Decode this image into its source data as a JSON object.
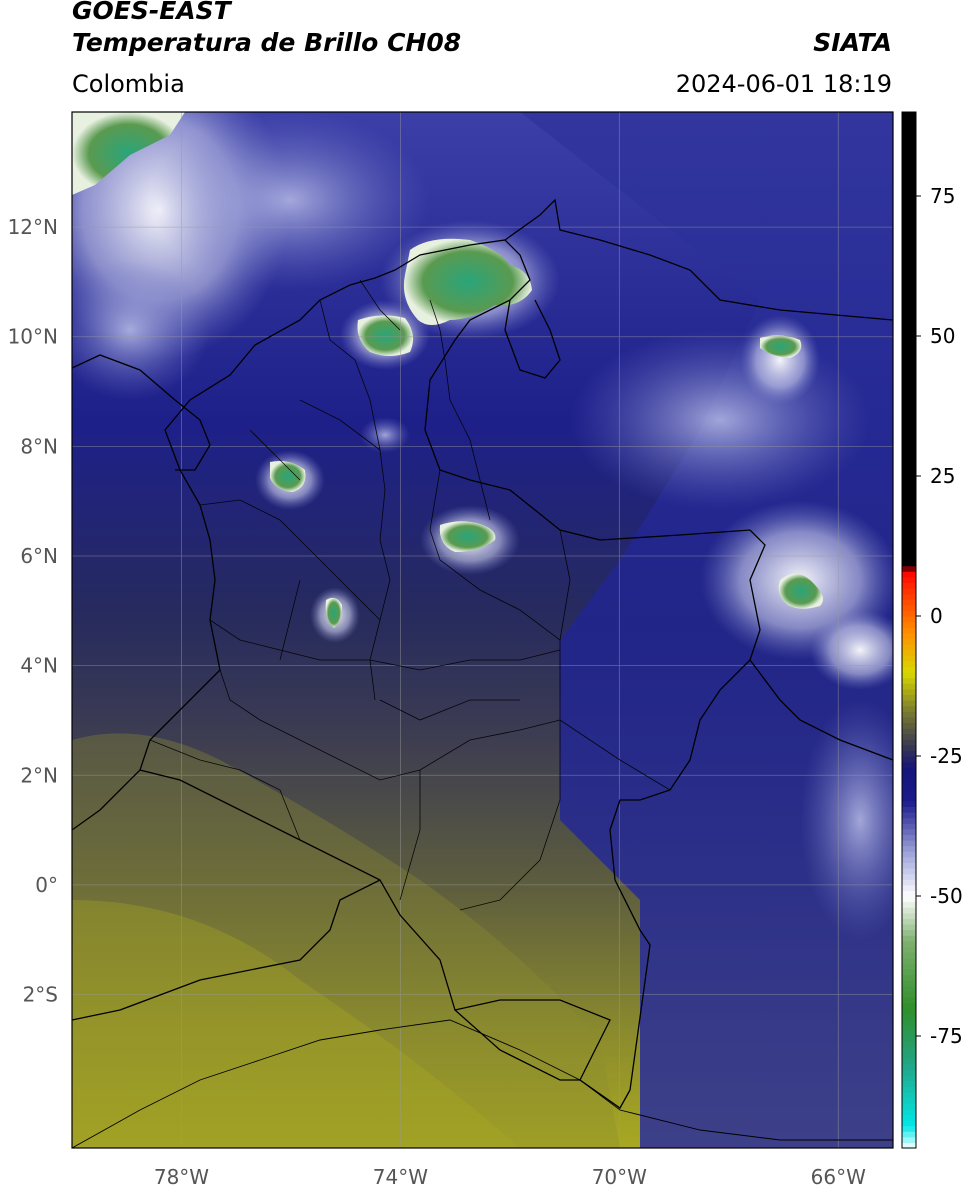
{
  "header": {
    "satellite": "GOES-EAST",
    "product": "Temperatura de Brillo CH08",
    "region": "Colombia",
    "agency": "SIATA",
    "datetime": "2024-06-01 18:19"
  },
  "map": {
    "lon_range": [
      -80,
      -65
    ],
    "lat_range": [
      -4.8,
      14.1
    ],
    "lat_ticks": [
      {
        "value": 12,
        "label": "12°N"
      },
      {
        "value": 10,
        "label": "10°N"
      },
      {
        "value": 8,
        "label": "8°N"
      },
      {
        "value": 6,
        "label": "6°N"
      },
      {
        "value": 4,
        "label": "4°N"
      },
      {
        "value": 2,
        "label": "2°N"
      },
      {
        "value": 0,
        "label": "0°"
      },
      {
        "value": -2,
        "label": "2°S"
      }
    ],
    "lon_ticks": [
      {
        "value": -78,
        "label": "78°W"
      },
      {
        "value": -74,
        "label": "74°W"
      },
      {
        "value": -70,
        "label": "70°W"
      },
      {
        "value": -66,
        "label": "66°W"
      }
    ],
    "grid": true
  },
  "colorbar": {
    "range": [
      -95,
      90
    ],
    "ticks": [
      {
        "value": 75,
        "label": "75"
      },
      {
        "value": 50,
        "label": "50"
      },
      {
        "value": 25,
        "label": "25"
      },
      {
        "value": 0,
        "label": "0"
      },
      {
        "value": -25,
        "label": "-25"
      },
      {
        "value": -50,
        "label": "-50"
      },
      {
        "value": -75,
        "label": "-75"
      }
    ],
    "stops": [
      {
        "value": -95,
        "color": "#ffffff"
      },
      {
        "value": -91,
        "color": "#00e8e8"
      },
      {
        "value": -80,
        "color": "#22a585"
      },
      {
        "value": -70,
        "color": "#2f8f2a"
      },
      {
        "value": -58,
        "color": "#7fb070"
      },
      {
        "value": -50,
        "color": "#ffffff"
      },
      {
        "value": -42,
        "color": "#9aa0d8"
      },
      {
        "value": -33,
        "color": "#1a1a8c"
      },
      {
        "value": -27,
        "color": "#15157a"
      },
      {
        "value": -23,
        "color": "#3a3a50"
      },
      {
        "value": -17,
        "color": "#7a7a30"
      },
      {
        "value": -10,
        "color": "#d8d800"
      },
      {
        "value": -3,
        "color": "#ff9000"
      },
      {
        "value": 6,
        "color": "#ff2000"
      },
      {
        "value": 8,
        "color": "#ff0000"
      },
      {
        "value": 9,
        "color": "#000000"
      },
      {
        "value": 90,
        "color": "#000000"
      }
    ]
  }
}
